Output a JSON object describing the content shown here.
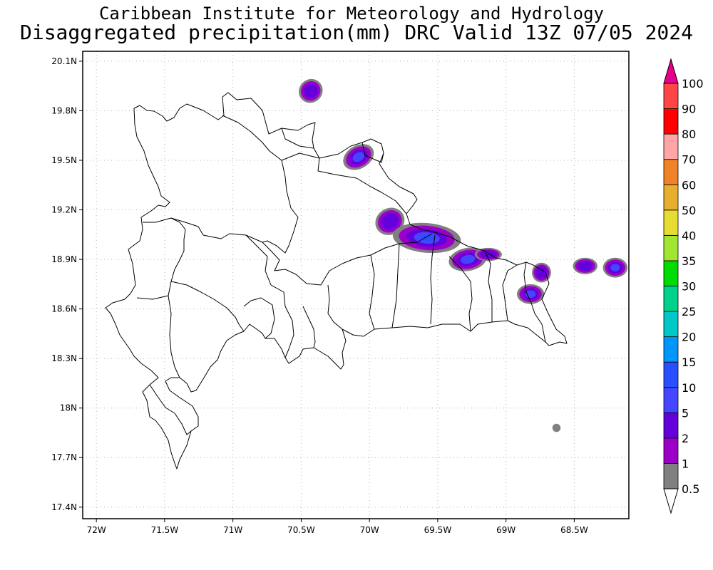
{
  "titles": {
    "line1": "Caribbean Institute for Meteorology and Hydrology",
    "line2": "Disaggregated precipitation(mm) DRC Valid 13Z 07/05 2024"
  },
  "chart_data": {
    "type": "heatmap",
    "lon_range": [
      -72.1,
      -68.1
    ],
    "lat_range": [
      17.33,
      20.16
    ],
    "xticks": [
      {
        "value": -72.0,
        "label": "72W"
      },
      {
        "value": -71.5,
        "label": "71.5W"
      },
      {
        "value": -71.0,
        "label": "71W"
      },
      {
        "value": -70.5,
        "label": "70.5W"
      },
      {
        "value": -70.0,
        "label": "70W"
      },
      {
        "value": -69.5,
        "label": "69.5W"
      },
      {
        "value": -69.0,
        "label": "69W"
      },
      {
        "value": -68.5,
        "label": "68.5W"
      }
    ],
    "yticks": [
      {
        "value": 20.1,
        "label": "20.1N"
      },
      {
        "value": 19.8,
        "label": "19.8N"
      },
      {
        "value": 19.5,
        "label": "19.5N"
      },
      {
        "value": 19.2,
        "label": "19.2N"
      },
      {
        "value": 18.9,
        "label": "18.9N"
      },
      {
        "value": 18.6,
        "label": "18.6N"
      },
      {
        "value": 18.3,
        "label": "18.3N"
      },
      {
        "value": 18.0,
        "label": "18N"
      },
      {
        "value": 17.7,
        "label": "17.7N"
      },
      {
        "value": 17.4,
        "label": "17.4N"
      }
    ],
    "grid": true,
    "colorbar": {
      "labels": [
        "0.5",
        "1",
        "2",
        "5",
        "10",
        "15",
        "20",
        "25",
        "30",
        "35",
        "40",
        "50",
        "60",
        "70",
        "80",
        "90",
        "100"
      ],
      "colors": [
        "#ffffff",
        "#808080",
        "#9c00c8",
        "#6400dc",
        "#4646ff",
        "#2850ff",
        "#0096ff",
        "#00c8c8",
        "#00d28c",
        "#00dc00",
        "#a0e632",
        "#e6dc32",
        "#e6af2d",
        "#f08228",
        "#ffa5a5",
        "#ff0000",
        "#ff4646",
        "#e6008c"
      ],
      "min_color": "#ffffff",
      "max_color": "#e6008c"
    },
    "precip_areas": [
      {
        "lon": -70.43,
        "lat": 19.92,
        "rx": 0.09,
        "ry": 0.07,
        "rot": 45,
        "max": 2
      },
      {
        "lon": -70.08,
        "lat": 19.52,
        "rx": 0.12,
        "ry": 0.07,
        "rot": 30,
        "max": 5
      },
      {
        "lon": -69.85,
        "lat": 19.13,
        "rx": 0.11,
        "ry": 0.08,
        "rot": 30,
        "max": 2
      },
      {
        "lon": -69.58,
        "lat": 19.03,
        "rx": 0.25,
        "ry": 0.09,
        "rot": -5,
        "max": 10
      },
      {
        "lon": -69.28,
        "lat": 18.9,
        "rx": 0.14,
        "ry": 0.07,
        "rot": 10,
        "max": 5
      },
      {
        "lon": -69.13,
        "lat": 18.93,
        "rx": 0.1,
        "ry": 0.04,
        "rot": 0,
        "max": 2
      },
      {
        "lon": -68.82,
        "lat": 18.69,
        "rx": 0.1,
        "ry": 0.06,
        "rot": 0,
        "max": 5
      },
      {
        "lon": -68.74,
        "lat": 18.82,
        "rx": 0.07,
        "ry": 0.06,
        "rot": 0,
        "max": 2
      },
      {
        "lon": -68.42,
        "lat": 18.86,
        "rx": 0.09,
        "ry": 0.05,
        "rot": 0,
        "max": 2
      },
      {
        "lon": -68.2,
        "lat": 18.85,
        "rx": 0.09,
        "ry": 0.06,
        "rot": 0,
        "max": 5
      },
      {
        "lon": -68.63,
        "lat": 17.88,
        "rx": 0.03,
        "ry": 0.025,
        "rot": 45,
        "max": 0.5
      }
    ]
  }
}
